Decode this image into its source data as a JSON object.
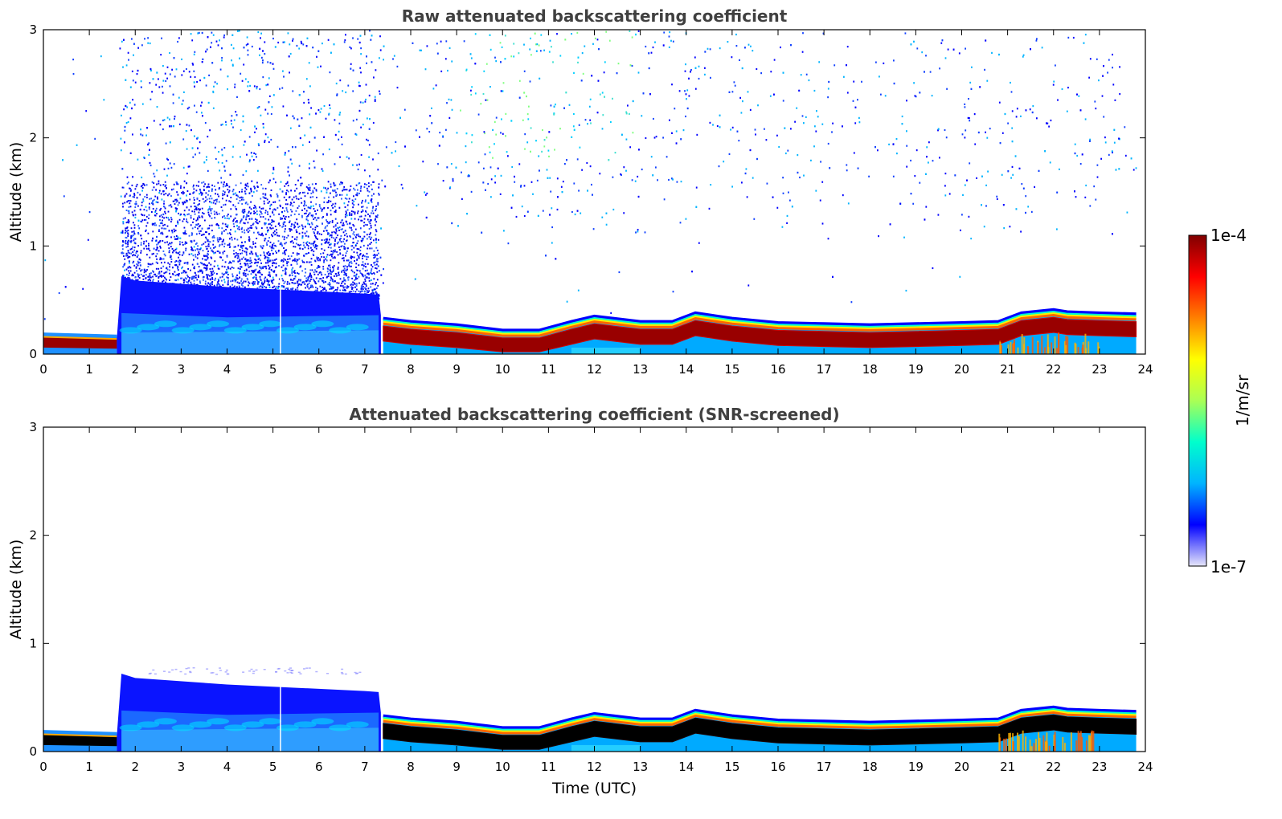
{
  "chart_data": [
    {
      "type": "heatmap",
      "title": "Raw attenuated backscattering coefficient",
      "xlabel": "",
      "ylabel": "Altitude (km)",
      "xlim": [
        0,
        24
      ],
      "ylim": [
        0,
        3
      ],
      "xticks": [
        "0",
        "1",
        "2",
        "3",
        "4",
        "5",
        "6",
        "7",
        "8",
        "9",
        "10",
        "11",
        "12",
        "13",
        "14",
        "15",
        "16",
        "17",
        "18",
        "19",
        "20",
        "21",
        "22",
        "23",
        "24"
      ],
      "yticks": [
        "0",
        "1",
        "2",
        "3"
      ],
      "grid": false,
      "noise": "raw",
      "layers": {
        "surface_layer_top_km": {
          "x": [
            0,
            1.6
          ],
          "y": [
            0.2,
            0.18
          ]
        },
        "aerosol_layer_top_km": {
          "x": [
            1.7,
            2,
            4,
            5,
            6,
            7,
            7.3
          ],
          "y": [
            0.72,
            0.68,
            0.62,
            0.6,
            0.58,
            0.56,
            0.55
          ]
        },
        "boundary_layer_top_km": {
          "x": [
            7.4,
            8,
            9,
            10,
            10.8,
            11.5,
            12,
            13,
            13.7,
            14.2,
            15,
            16,
            17,
            18,
            19,
            20,
            20.8,
            21.3,
            22,
            22.3,
            23,
            23.8
          ],
          "y": [
            0.33,
            0.3,
            0.27,
            0.22,
            0.22,
            0.3,
            0.35,
            0.3,
            0.3,
            0.38,
            0.33,
            0.29,
            0.28,
            0.27,
            0.28,
            0.29,
            0.3,
            0.38,
            0.41,
            0.39,
            0.38,
            0.37
          ]
        }
      }
    },
    {
      "type": "heatmap",
      "title": "Attenuated backscattering coefficient (SNR-screened)",
      "xlabel": "Time (UTC)",
      "ylabel": "Altitude (km)",
      "xlim": [
        0,
        24
      ],
      "ylim": [
        0,
        3
      ],
      "xticks": [
        "0",
        "1",
        "2",
        "3",
        "4",
        "5",
        "6",
        "7",
        "8",
        "9",
        "10",
        "11",
        "12",
        "13",
        "14",
        "15",
        "16",
        "17",
        "18",
        "19",
        "20",
        "21",
        "22",
        "23",
        "24"
      ],
      "yticks": [
        "0",
        "1",
        "2",
        "3"
      ],
      "grid": false,
      "noise": "screened",
      "saturated_color": "#000000"
    }
  ],
  "colorbar": {
    "label": "1/m/sr",
    "max_label": "1e-4",
    "min_label": "1e-7",
    "scale": "log",
    "colormap": "jet",
    "stops": [
      "#e6e6fa",
      "#0000ff",
      "#00b4ff",
      "#00ffcc",
      "#aaff55",
      "#ffff00",
      "#ff8000",
      "#ff0000",
      "#800000"
    ]
  }
}
